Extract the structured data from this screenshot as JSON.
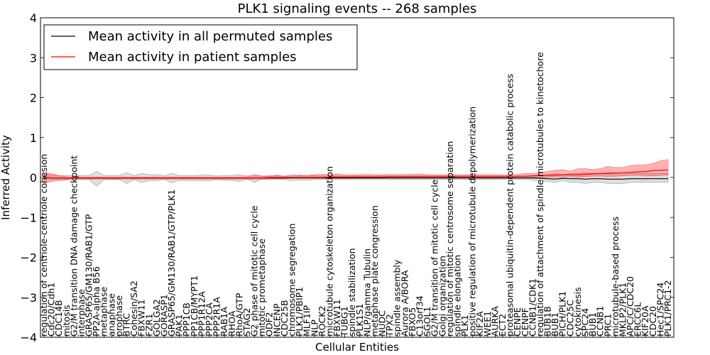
{
  "chart_data": {
    "type": "line",
    "title": "PLK1 signaling events -- 268 samples",
    "xlabel": "Cellular Entities",
    "ylabel": "Inferred Activity",
    "ylim": [
      -4,
      4
    ],
    "yticks": [
      -4,
      -3,
      -2,
      -1,
      0,
      1,
      2,
      3,
      4
    ],
    "legend_location": "top-left",
    "categories": [
      "regulation of centriole-centriole cohesion",
      "Cdc20/Cdh1",
      "CDC14B",
      "mitosis",
      "G2/M transition DNA damage checkpoint",
      "interphase",
      "GRASP65/GM130/RAB1/GTP",
      "PP2A-alpha B56",
      "metaphase",
      "anaphase",
      "prophase",
      "BTRC",
      "Cohesin/SA2",
      "FBXW11",
      "FZR1",
      "GOLGA2",
      "GORASP1",
      "GRASP65/GM130/RAB1/GTP/PLK1",
      "PAK1",
      "PPP1CB",
      "PP1CB/MYPT1",
      "PPP1R12A",
      "PPP2CA",
      "PPP2R1A",
      "RAB1A",
      "RHOA",
      "RhoA/GTP",
      "STAG2",
      "G2 phase of mitotic cell cycle",
      "mitotic prometaphase",
      "ODF2",
      "INCENP",
      "CDC25B",
      "chromosome segregation",
      "PLK1/PBIP1",
      "MLF1IP",
      "NLP",
      "ROCK2",
      "microtubule cytoskeleton organization",
      "FBXW11",
      "TUBG1",
      "spindle stabilization",
      "PLK1S1",
      "NLP/gamma Tubulin",
      "metaphase plate congression",
      "NUDC",
      "TPX2",
      "spindle assembly",
      "Aurora A/BORA",
      "FBXO5",
      "C13orf34",
      "SGOL1",
      "G2/M transition of mitotic cell cycle",
      "Golgi organization",
      "regulation of mitotic centrosome separation",
      "spindle elongation",
      "PLK1",
      "positive regulation of microtubule depolymerization",
      "KIF2A",
      "WEE1",
      "AURKA",
      "ECT2",
      "proteasomal ubiquitin-dependent protein catabolic process",
      "CENPE",
      "CENPF",
      "CCNB1/CDK1",
      "regulation of attachment of spindle microtubules to kinetochore",
      "BUB1B",
      "BUB1",
      "PICH/PLK1",
      "CDC25C",
      "cytokinesis",
      "SPC24",
      "BUB1",
      "CCNB1",
      "PRC1",
      "microtubule-based process",
      "MKLP2/PLK1",
      "APC/C/CDC20",
      "ERCC6L",
      "KIF20A",
      "CDC20",
      "Hec1/SPC24",
      "PLK1/PRC1-2"
    ],
    "series": [
      {
        "name": "Mean activity in all permuted samples",
        "color": "#000000",
        "values": [
          0.0,
          -0.01,
          -0.01,
          -0.01,
          -0.01,
          -0.01,
          -0.01,
          -0.01,
          -0.01,
          -0.01,
          -0.01,
          -0.01,
          -0.01,
          -0.01,
          -0.01,
          -0.01,
          -0.01,
          -0.01,
          -0.01,
          -0.01,
          -0.01,
          -0.01,
          -0.01,
          -0.01,
          -0.01,
          -0.01,
          -0.01,
          -0.01,
          -0.01,
          -0.01,
          -0.01,
          -0.01,
          -0.01,
          -0.01,
          -0.01,
          -0.01,
          -0.01,
          -0.01,
          -0.01,
          -0.01,
          -0.01,
          -0.01,
          -0.01,
          -0.01,
          -0.01,
          -0.01,
          -0.01,
          -0.01,
          -0.01,
          -0.01,
          -0.01,
          -0.01,
          -0.01,
          -0.01,
          -0.01,
          -0.01,
          -0.01,
          -0.01,
          -0.01,
          -0.01,
          -0.01,
          -0.01,
          -0.01,
          -0.01,
          -0.01,
          -0.01,
          -0.02,
          -0.03,
          -0.04,
          -0.02,
          -0.03,
          -0.03,
          -0.04,
          -0.03,
          -0.03,
          -0.04,
          -0.04,
          -0.04,
          -0.03,
          -0.03,
          -0.03,
          -0.03,
          -0.03,
          -0.03
        ],
        "band_low": [
          -0.06,
          -0.05,
          -0.05,
          -0.05,
          -0.05,
          -0.05,
          -0.05,
          -0.22,
          -0.05,
          -0.05,
          -0.05,
          -0.15,
          -0.05,
          -0.13,
          -0.08,
          -0.08,
          -0.05,
          -0.13,
          -0.07,
          -0.08,
          -0.08,
          -0.08,
          -0.08,
          -0.05,
          -0.07,
          -0.07,
          -0.1,
          -0.04,
          -0.12,
          -0.04,
          -0.06,
          -0.05,
          -0.05,
          -0.08,
          -0.06,
          -0.07,
          -0.05,
          -0.05,
          -0.05,
          -0.05,
          -0.05,
          -0.05,
          -0.05,
          -0.05,
          -0.05,
          -0.05,
          -0.05,
          -0.05,
          -0.05,
          -0.05,
          -0.05,
          -0.05,
          -0.05,
          -0.05,
          -0.05,
          -0.05,
          -0.05,
          -0.05,
          -0.05,
          -0.05,
          -0.05,
          -0.05,
          -0.05,
          -0.05,
          -0.05,
          -0.07,
          -0.08,
          -0.1,
          -0.12,
          -0.08,
          -0.12,
          -0.12,
          -0.15,
          -0.12,
          -0.12,
          -0.15,
          -0.15,
          -0.15,
          -0.12,
          -0.12,
          -0.12,
          -0.12,
          -0.12,
          -0.12
        ],
        "band_high": [
          0.08,
          0.06,
          0.05,
          0.05,
          0.05,
          0.05,
          0.05,
          0.15,
          0.05,
          0.05,
          0.05,
          0.12,
          0.05,
          0.1,
          0.07,
          0.07,
          0.05,
          0.1,
          0.05,
          0.05,
          0.05,
          0.06,
          0.06,
          0.04,
          0.05,
          0.05,
          0.07,
          0.04,
          0.08,
          0.04,
          0.05,
          0.04,
          0.04,
          0.07,
          0.05,
          0.05,
          0.04,
          0.04,
          0.04,
          0.04,
          0.04,
          0.04,
          0.04,
          0.04,
          0.04,
          0.04,
          0.04,
          0.04,
          0.04,
          0.04,
          0.04,
          0.04,
          0.04,
          0.04,
          0.04,
          0.04,
          0.04,
          0.04,
          0.04,
          0.04,
          0.04,
          0.04,
          0.04,
          0.04,
          0.04,
          0.05,
          0.06,
          0.08,
          0.1,
          0.06,
          0.1,
          0.1,
          0.12,
          0.1,
          0.1,
          0.12,
          0.12,
          0.12,
          0.1,
          0.1,
          0.1,
          0.1,
          0.1,
          0.1
        ]
      },
      {
        "name": "Mean activity in patient samples",
        "color": "#ff0000",
        "values": [
          0.0,
          -0.01,
          -0.01,
          -0.01,
          -0.01,
          -0.01,
          -0.01,
          -0.01,
          -0.01,
          -0.01,
          -0.01,
          -0.01,
          -0.01,
          -0.01,
          -0.01,
          -0.01,
          -0.01,
          -0.01,
          -0.01,
          -0.01,
          -0.01,
          -0.01,
          -0.01,
          -0.01,
          -0.01,
          -0.01,
          -0.01,
          -0.01,
          -0.01,
          -0.01,
          0.0,
          0.0,
          0.0,
          0.0,
          0.0,
          0.0,
          0.0,
          0.0,
          0.01,
          0.01,
          0.01,
          0.01,
          0.01,
          0.01,
          0.01,
          0.01,
          0.02,
          0.02,
          0.02,
          0.02,
          0.02,
          0.02,
          0.02,
          0.02,
          0.02,
          0.02,
          0.02,
          0.02,
          0.02,
          0.02,
          0.02,
          0.02,
          0.02,
          0.03,
          0.03,
          0.04,
          0.05,
          0.05,
          0.06,
          0.07,
          0.07,
          0.07,
          0.08,
          0.09,
          0.1,
          0.1,
          0.11,
          0.12,
          0.13,
          0.14,
          0.15,
          0.17,
          0.18,
          0.19
        ],
        "band_low": [
          -0.15,
          -0.1,
          -0.08,
          -0.06,
          -0.05,
          -0.05,
          -0.05,
          -0.04,
          -0.04,
          -0.04,
          -0.04,
          -0.04,
          -0.04,
          -0.04,
          -0.04,
          -0.04,
          -0.04,
          -0.04,
          -0.04,
          -0.04,
          -0.04,
          -0.04,
          -0.04,
          -0.04,
          -0.04,
          -0.04,
          -0.04,
          -0.04,
          -0.04,
          -0.04,
          -0.03,
          -0.03,
          -0.03,
          -0.02,
          -0.02,
          -0.02,
          -0.02,
          -0.02,
          -0.02,
          -0.02,
          -0.02,
          -0.02,
          -0.01,
          -0.01,
          -0.01,
          -0.01,
          -0.01,
          -0.01,
          -0.01,
          -0.01,
          -0.01,
          -0.01,
          -0.01,
          -0.01,
          -0.01,
          -0.01,
          -0.01,
          -0.01,
          -0.01,
          -0.01,
          -0.01,
          -0.01,
          -0.01,
          -0.01,
          0.0,
          0.0,
          0.0,
          0.0,
          0.01,
          0.02,
          0.02,
          0.01,
          0.02,
          0.03,
          0.04,
          0.02,
          0.03,
          0.04,
          0.05,
          0.05,
          0.04,
          0.04,
          0.05,
          0.06
        ],
        "band_high": [
          0.12,
          0.1,
          0.05,
          0.02,
          0.01,
          0.01,
          0.01,
          0.01,
          0.01,
          0.01,
          0.01,
          0.01,
          0.01,
          0.01,
          0.01,
          0.01,
          0.01,
          0.01,
          0.01,
          0.01,
          0.01,
          0.01,
          0.01,
          0.01,
          0.01,
          0.01,
          0.01,
          0.02,
          0.05,
          0.03,
          0.03,
          0.06,
          0.03,
          0.04,
          0.06,
          0.05,
          0.07,
          0.08,
          0.08,
          0.09,
          0.07,
          0.07,
          0.07,
          0.08,
          0.07,
          0.07,
          0.08,
          0.07,
          0.08,
          0.08,
          0.09,
          0.07,
          0.07,
          0.07,
          0.07,
          0.07,
          0.07,
          0.07,
          0.07,
          0.07,
          0.07,
          0.07,
          0.07,
          0.08,
          0.1,
          0.1,
          0.13,
          0.15,
          0.18,
          0.2,
          0.16,
          0.22,
          0.22,
          0.2,
          0.22,
          0.28,
          0.25,
          0.25,
          0.3,
          0.32,
          0.32,
          0.35,
          0.42,
          0.45
        ]
      }
    ]
  }
}
